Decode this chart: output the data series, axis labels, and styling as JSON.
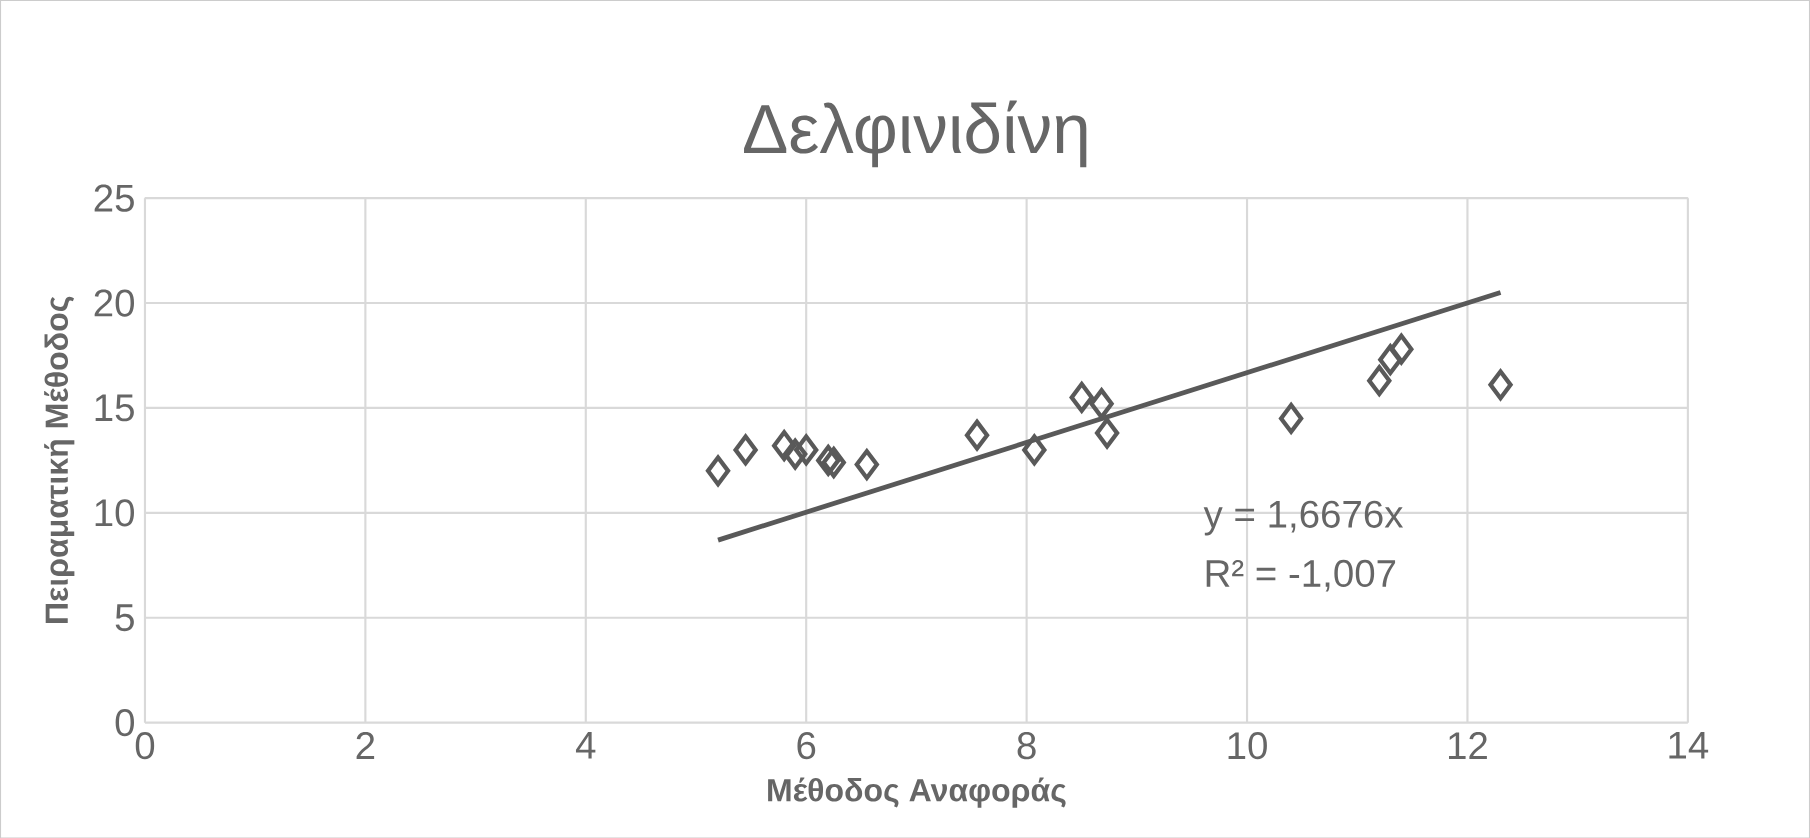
{
  "chart_data": {
    "type": "scatter",
    "title": "Δελφινιδίνη",
    "xlabel": "Μέθοδος Αναφοράς",
    "ylabel": "Πειραματική Μέθοδος",
    "xlim": [
      0,
      14
    ],
    "xticks": [
      0,
      2,
      4,
      6,
      8,
      10,
      12,
      14
    ],
    "ylim": [
      0,
      25
    ],
    "yticks": [
      0,
      5,
      10,
      15,
      20,
      25
    ],
    "grid": true,
    "series": [
      {
        "color": "#595959",
        "marker": "diamond",
        "x": [
          5.2,
          5.45,
          5.8,
          5.9,
          6.0,
          6.2,
          6.25,
          6.55,
          7.55,
          8.07,
          8.5,
          8.68,
          8.73,
          10.4,
          11.2,
          11.3,
          11.4,
          12.3
        ],
        "values": [
          12.0,
          13.0,
          13.2,
          12.8,
          13.0,
          12.5,
          12.4,
          12.3,
          13.7,
          13.0,
          15.5,
          15.2,
          13.8,
          14.5,
          16.3,
          17.3,
          17.8,
          16.1
        ]
      },
      {
        "type": "line",
        "color": "#595959",
        "marker": "none",
        "x": [
          5.2,
          12.3
        ],
        "values": [
          8.7,
          20.5
        ]
      }
    ],
    "annotations": [
      "y = 1,6676x",
      "R² = -1,007"
    ]
  }
}
